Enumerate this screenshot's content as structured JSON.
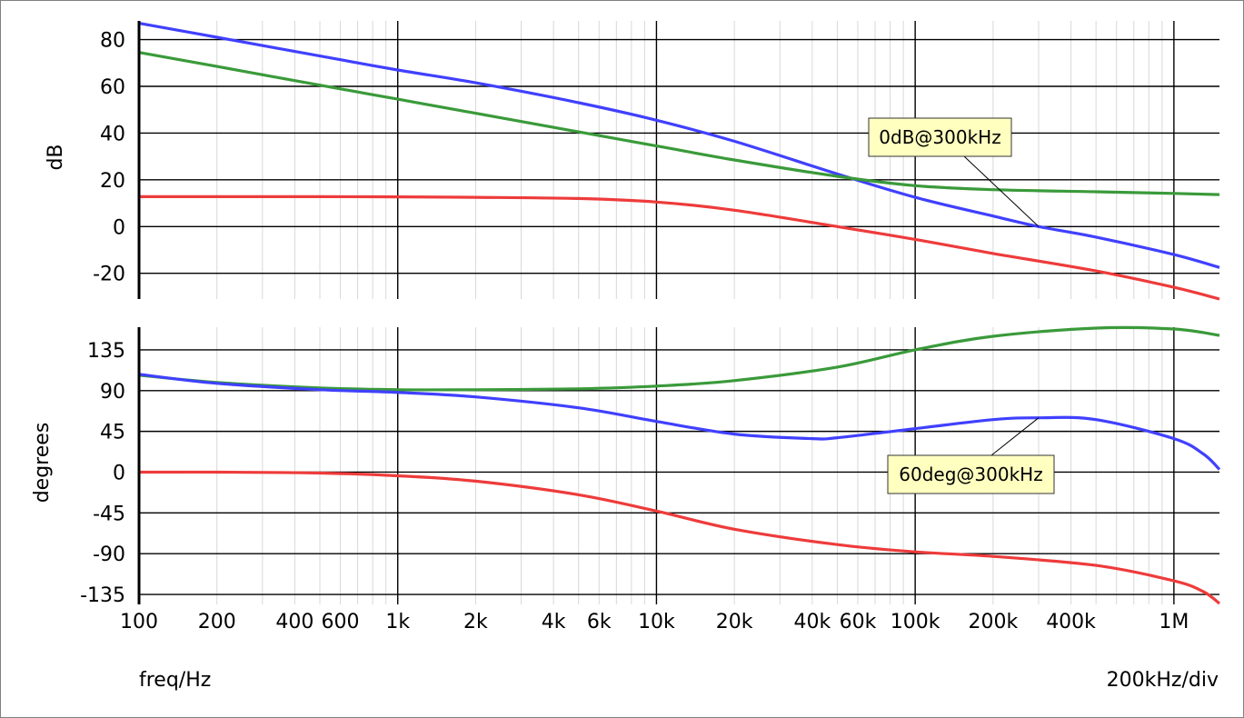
{
  "chart_data": [
    {
      "type": "line",
      "ylabel": "dB",
      "x_scale": "log",
      "xlim": [
        100,
        1500000
      ],
      "ylim": [
        -31,
        88
      ],
      "yticks": [
        80,
        60,
        40,
        20,
        0,
        -20
      ],
      "ytick_labels": [
        "80",
        "60",
        "40",
        "20",
        "0",
        "-20"
      ],
      "series": [
        {
          "color": "#4040ff",
          "x": [
            100,
            200,
            500,
            1000,
            2000,
            5000,
            10000,
            20000,
            50000,
            100000,
            200000,
            300000,
            500000,
            1000000,
            1500000
          ],
          "y": [
            87,
            81,
            73,
            67,
            61.5,
            53,
            45.5,
            36.5,
            22.5,
            12.5,
            4.5,
            0,
            -4.5,
            -12,
            -17.5
          ]
        },
        {
          "color": "#3a9a3a",
          "x": [
            100,
            200,
            500,
            1000,
            2000,
            5000,
            10000,
            20000,
            50000,
            100000,
            200000,
            500000,
            1000000,
            1500000
          ],
          "y": [
            74.5,
            68.5,
            60.5,
            54.5,
            48.5,
            40.5,
            34.5,
            28.5,
            21.5,
            17.5,
            15.8,
            14.9,
            14.2,
            13.7
          ]
        },
        {
          "color": "#ee3b3b",
          "x": [
            100,
            200,
            500,
            1000,
            2000,
            5000,
            10000,
            20000,
            50000,
            100000,
            200000,
            500000,
            1000000,
            1500000
          ],
          "y": [
            12.8,
            12.8,
            12.8,
            12.7,
            12.5,
            12,
            10.5,
            7,
            0,
            -5.5,
            -11.5,
            -19,
            -26,
            -31
          ]
        }
      ],
      "annotations": [
        {
          "text": "0dB@300kHz",
          "x": 300000,
          "y": 0
        }
      ]
    },
    {
      "type": "line",
      "ylabel": "degrees",
      "x_scale": "log",
      "xlim": [
        100,
        1500000
      ],
      "ylim": [
        -146,
        160
      ],
      "yticks": [
        135,
        90,
        45,
        0,
        -45,
        -90,
        -135
      ],
      "ytick_labels": [
        "135",
        "90",
        "45",
        "0",
        "-45",
        "-90",
        "-135"
      ],
      "series": [
        {
          "color": "#3a9a3a",
          "x": [
            100,
            200,
            500,
            1000,
            2000,
            5000,
            10000,
            20000,
            50000,
            100000,
            200000,
            500000,
            1000000,
            1500000
          ],
          "y": [
            107,
            99,
            93,
            91,
            91,
            92,
            95,
            101,
            116,
            135,
            150,
            159,
            158,
            151
          ]
        },
        {
          "color": "#4040ff",
          "x": [
            100,
            200,
            500,
            1000,
            2000,
            5000,
            10000,
            20000,
            40000,
            50000,
            100000,
            200000,
            300000,
            500000,
            1000000,
            1300000,
            1500000
          ],
          "y": [
            108,
            98,
            91,
            88,
            83,
            71,
            56,
            42,
            37,
            38,
            48,
            58,
            60,
            58,
            37,
            20,
            3
          ]
        },
        {
          "color": "#ee3b3b",
          "x": [
            100,
            200,
            500,
            1000,
            2000,
            5000,
            10000,
            20000,
            50000,
            100000,
            200000,
            500000,
            1000000,
            1300000,
            1500000
          ],
          "y": [
            0,
            0,
            -1,
            -4,
            -10,
            -25,
            -43,
            -63,
            -80,
            -88,
            -93,
            -103,
            -120,
            -132,
            -145
          ]
        }
      ],
      "annotations": [
        {
          "text": "60deg@300kHz",
          "x": 300000,
          "y": 60
        }
      ]
    }
  ],
  "x_axis": {
    "ticks": [
      100,
      200,
      400,
      600,
      1000,
      2000,
      4000,
      6000,
      10000,
      20000,
      40000,
      60000,
      100000,
      200000,
      400000,
      1000000
    ],
    "tick_labels": [
      "100",
      "200",
      "400",
      "600",
      "1k",
      "2k",
      "4k",
      "6k",
      "10k",
      "20k",
      "40k",
      "60k",
      "100k",
      "200k",
      "400k",
      "1M"
    ]
  },
  "footer": {
    "xlabel": "freq/Hz",
    "scale_text": "200kHz/div"
  }
}
